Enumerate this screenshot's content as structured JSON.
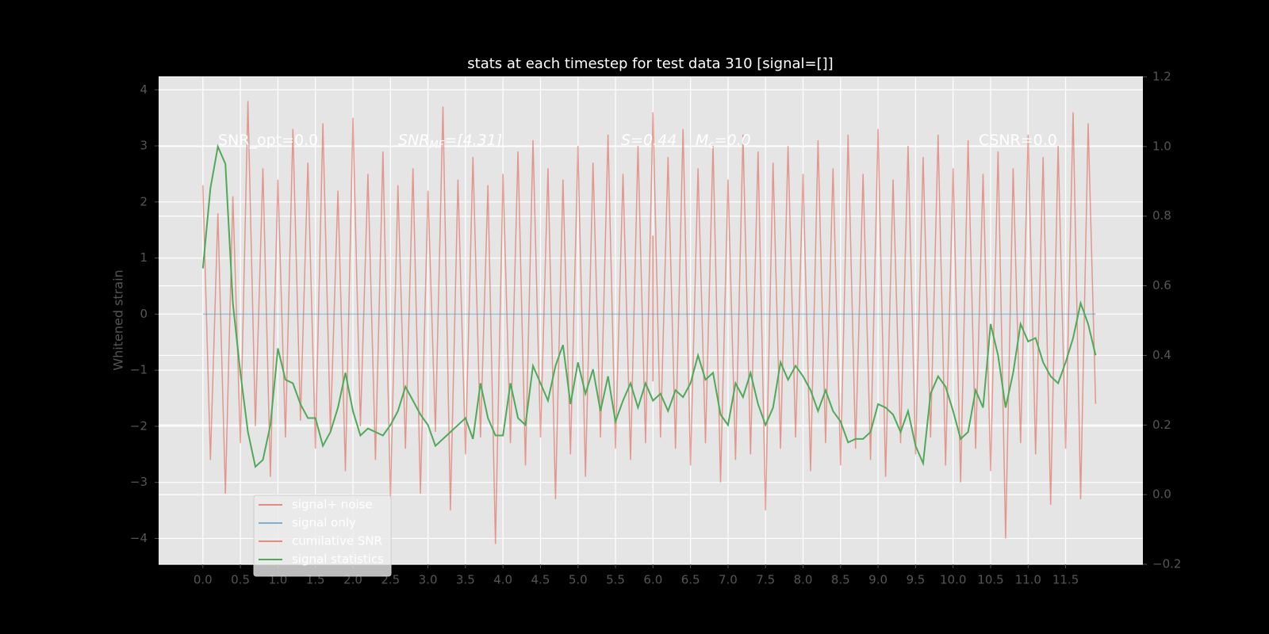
{
  "chart_data": {
    "type": "line",
    "title": "stats at each timestep for test data 310 [signal=[]]",
    "ylabel": "Whitened strain",
    "x": [
      0.0,
      0.1,
      0.2,
      0.3,
      0.4,
      0.5,
      0.6,
      0.7,
      0.8,
      0.9,
      1.0,
      1.1,
      1.2,
      1.3,
      1.4,
      1.5,
      1.6,
      1.7,
      1.8,
      1.9,
      2.0,
      2.1,
      2.2,
      2.3,
      2.4,
      2.5,
      2.6,
      2.7,
      2.8,
      2.9,
      3.0,
      3.1,
      3.2,
      3.3,
      3.4,
      3.5,
      3.6,
      3.7,
      3.8,
      3.9,
      4.0,
      4.1,
      4.2,
      4.3,
      4.4,
      4.5,
      4.6,
      4.7,
      4.8,
      4.9,
      5.0,
      5.1,
      5.2,
      5.3,
      5.4,
      5.5,
      5.6,
      5.7,
      5.8,
      5.9,
      6.0,
      6.1,
      6.2,
      6.3,
      6.4,
      6.5,
      6.6,
      6.7,
      6.8,
      6.9,
      7.0,
      7.1,
      7.2,
      7.3,
      7.4,
      7.5,
      7.6,
      7.7,
      7.8,
      7.9,
      8.0,
      8.1,
      8.2,
      8.3,
      8.4,
      8.5,
      8.6,
      8.7,
      8.8,
      8.9,
      9.0,
      9.1,
      9.2,
      9.3,
      9.4,
      9.5,
      9.6,
      9.7,
      9.8,
      9.9,
      10.0,
      10.1,
      10.2,
      10.3,
      10.4,
      10.5,
      10.6,
      10.7,
      10.8,
      10.9,
      11.0,
      11.1,
      11.2,
      11.3,
      11.4,
      11.5,
      11.6,
      11.7,
      11.8,
      11.9
    ],
    "series": [
      {
        "name": "signal+ noise",
        "color": "#E24A33",
        "opacity": 0.5,
        "values": [
          2.3,
          -2.6,
          1.8,
          -3.2,
          2.1,
          -2.3,
          3.8,
          -2.0,
          2.6,
          -2.9,
          2.4,
          -2.2,
          3.3,
          -1.9,
          2.7,
          -2.4,
          3.4,
          -2.1,
          2.2,
          -2.8,
          3.5,
          -2.0,
          2.5,
          -2.6,
          2.9,
          -3.3,
          2.3,
          -2.4,
          2.6,
          -3.2,
          2.2,
          -2.1,
          3.7,
          -3.5,
          2.4,
          -2.5,
          2.8,
          -2.2,
          2.3,
          -4.1,
          2.5,
          -2.3,
          2.9,
          -2.7,
          3.1,
          -2.2,
          2.6,
          -3.3,
          2.4,
          -2.5,
          3.0,
          -2.9,
          2.7,
          -2.2,
          3.2,
          -2.4,
          2.5,
          -2.6,
          3.0,
          -2.3,
          3.6,
          -2.2,
          2.8,
          -2.4,
          3.3,
          -2.7,
          2.6,
          -2.3,
          3.0,
          -3.0,
          2.4,
          -2.6,
          3.2,
          -2.5,
          2.9,
          -3.5,
          2.7,
          -2.4,
          3.0,
          -2.2,
          2.5,
          -2.8,
          3.1,
          -2.3,
          2.6,
          -2.7,
          3.2,
          -2.4,
          2.5,
          -2.6,
          3.3,
          -2.9,
          2.4,
          -2.3,
          3.0,
          -2.5,
          2.8,
          -2.2,
          3.2,
          -2.7,
          2.6,
          -3.0,
          3.1,
          -2.4,
          2.5,
          -2.8,
          2.9,
          -4.0,
          2.6,
          -2.3,
          3.2,
          -2.5,
          2.8,
          -3.4,
          3.0,
          -2.4,
          3.6,
          -3.3,
          3.4,
          -1.6
        ]
      },
      {
        "name": "signal only",
        "color": "#348ABD",
        "opacity": 0.5,
        "values": [
          0,
          0,
          0,
          0,
          0,
          0,
          0,
          0,
          0,
          0,
          0,
          0,
          0,
          0,
          0,
          0,
          0,
          0,
          0,
          0,
          0,
          0,
          0,
          0,
          0,
          0,
          0,
          0,
          0,
          0,
          0,
          0,
          0,
          0,
          0,
          0,
          0,
          0,
          0,
          0,
          0,
          0,
          0,
          0,
          0,
          0,
          0,
          0,
          0,
          0,
          0,
          0,
          0,
          0,
          0,
          0,
          0,
          0,
          0,
          0,
          0,
          0,
          0,
          0,
          0,
          0,
          0,
          0,
          0,
          0,
          0,
          0,
          0,
          0,
          0,
          0,
          0,
          0,
          0,
          0,
          0,
          0,
          0,
          0,
          0,
          0,
          0,
          0,
          0,
          0,
          0,
          0,
          0,
          0,
          0,
          0,
          0,
          0,
          0,
          0,
          0,
          0,
          0,
          0,
          0,
          0,
          0,
          0,
          0,
          0,
          0,
          0,
          0,
          0,
          0,
          0,
          0,
          0,
          0,
          0
        ]
      },
      {
        "name": "cumilative SNR",
        "color": "#E24A33",
        "opacity": 0.6,
        "x": [
          6.0,
          6.0
        ],
        "values": [
          1.4,
          -1.2
        ]
      },
      {
        "name": "signal statistics",
        "color": "#4daa57",
        "opacity": 1,
        "axis": "y2",
        "values": [
          0.65,
          0.88,
          1.0,
          0.95,
          0.55,
          0.35,
          0.18,
          0.08,
          0.1,
          0.2,
          0.42,
          0.33,
          0.32,
          0.26,
          0.22,
          0.22,
          0.14,
          0.18,
          0.25,
          0.35,
          0.24,
          0.17,
          0.19,
          0.18,
          0.17,
          0.2,
          0.24,
          0.31,
          0.27,
          0.23,
          0.2,
          0.14,
          0.16,
          0.18,
          0.2,
          0.22,
          0.16,
          0.32,
          0.22,
          0.17,
          0.17,
          0.32,
          0.22,
          0.2,
          0.37,
          0.32,
          0.27,
          0.37,
          0.43,
          0.26,
          0.38,
          0.29,
          0.36,
          0.24,
          0.34,
          0.21,
          0.27,
          0.32,
          0.25,
          0.32,
          0.27,
          0.29,
          0.24,
          0.3,
          0.28,
          0.32,
          0.4,
          0.33,
          0.35,
          0.23,
          0.2,
          0.32,
          0.28,
          0.35,
          0.26,
          0.2,
          0.25,
          0.38,
          0.33,
          0.37,
          0.34,
          0.3,
          0.24,
          0.3,
          0.24,
          0.21,
          0.15,
          0.16,
          0.16,
          0.18,
          0.26,
          0.25,
          0.23,
          0.18,
          0.24,
          0.14,
          0.09,
          0.29,
          0.34,
          0.31,
          0.24,
          0.16,
          0.18,
          0.3,
          0.25,
          0.49,
          0.4,
          0.25,
          0.35,
          0.49,
          0.44,
          0.45,
          0.38,
          0.34,
          0.32,
          0.38,
          0.45,
          0.55,
          0.49,
          0.4
        ]
      }
    ],
    "annotations": [
      {
        "text": "SNR_opt=0.0",
        "italic": false
      },
      {
        "text": "SNR",
        "sub": "MF",
        "tail": "=[4.31]",
        "italic": true
      },
      {
        "text": "S=0.44",
        "italic": true
      },
      {
        "text": "M",
        "sub": "c",
        "tail": "=0.0",
        "italic": true
      },
      {
        "text": "CSNR=0.0",
        "italic": false
      }
    ],
    "xlim": [
      -0.59,
      12.53
    ],
    "xticks": [
      {
        "value": 0,
        "label": "0.0"
      },
      {
        "value": 0.5,
        "label": "0.5"
      },
      {
        "value": 1,
        "label": "1.0"
      },
      {
        "value": 1.5,
        "label": "1.5"
      },
      {
        "value": 2,
        "label": "2.0"
      },
      {
        "value": 2.5,
        "label": "2.5"
      },
      {
        "value": 3,
        "label": "3.0"
      },
      {
        "value": 3.5,
        "label": "3.5"
      },
      {
        "value": 4,
        "label": "4.0"
      },
      {
        "value": 4.5,
        "label": "4.5"
      },
      {
        "value": 5,
        "label": "5.0"
      },
      {
        "value": 5.5,
        "label": "5.5"
      },
      {
        "value": 6,
        "label": "6.0"
      },
      {
        "value": 6.5,
        "label": "6.5"
      },
      {
        "value": 7,
        "label": "7.0"
      },
      {
        "value": 7.5,
        "label": "7.5"
      },
      {
        "value": 8,
        "label": "8.0"
      },
      {
        "value": 8.5,
        "label": "8.5"
      },
      {
        "value": 9,
        "label": "9.0"
      },
      {
        "value": 9.5,
        "label": "9.5"
      },
      {
        "value": 10,
        "label": "10.0"
      },
      {
        "value": 10.5,
        "label": "10.5"
      },
      {
        "value": 11,
        "label": "11.0"
      },
      {
        "value": 11.5,
        "label": "11.5"
      }
    ],
    "ylim": [
      -4.46,
      4.23
    ],
    "yticks": [
      {
        "value": -4,
        "label": "−4"
      },
      {
        "value": -3,
        "label": "−3"
      },
      {
        "value": -2,
        "label": "−2"
      },
      {
        "value": -1,
        "label": "−1"
      },
      0,
      1,
      2,
      3,
      4
    ],
    "y2lim": [
      -0.2,
      1.2
    ],
    "y2ticks": [
      {
        "value": -0.2,
        "label": "−0.2"
      },
      {
        "value": 0,
        "label": "0.0"
      },
      {
        "value": 0.2,
        "label": "0.2"
      },
      {
        "value": 0.4,
        "label": "0.4"
      },
      {
        "value": 0.6,
        "label": "0.6"
      },
      {
        "value": 0.8,
        "label": "0.8"
      },
      {
        "value": 1.0,
        "label": "1.0"
      },
      {
        "value": 1.2,
        "label": "1.2"
      }
    ],
    "grid": true,
    "legend": "lower left"
  }
}
